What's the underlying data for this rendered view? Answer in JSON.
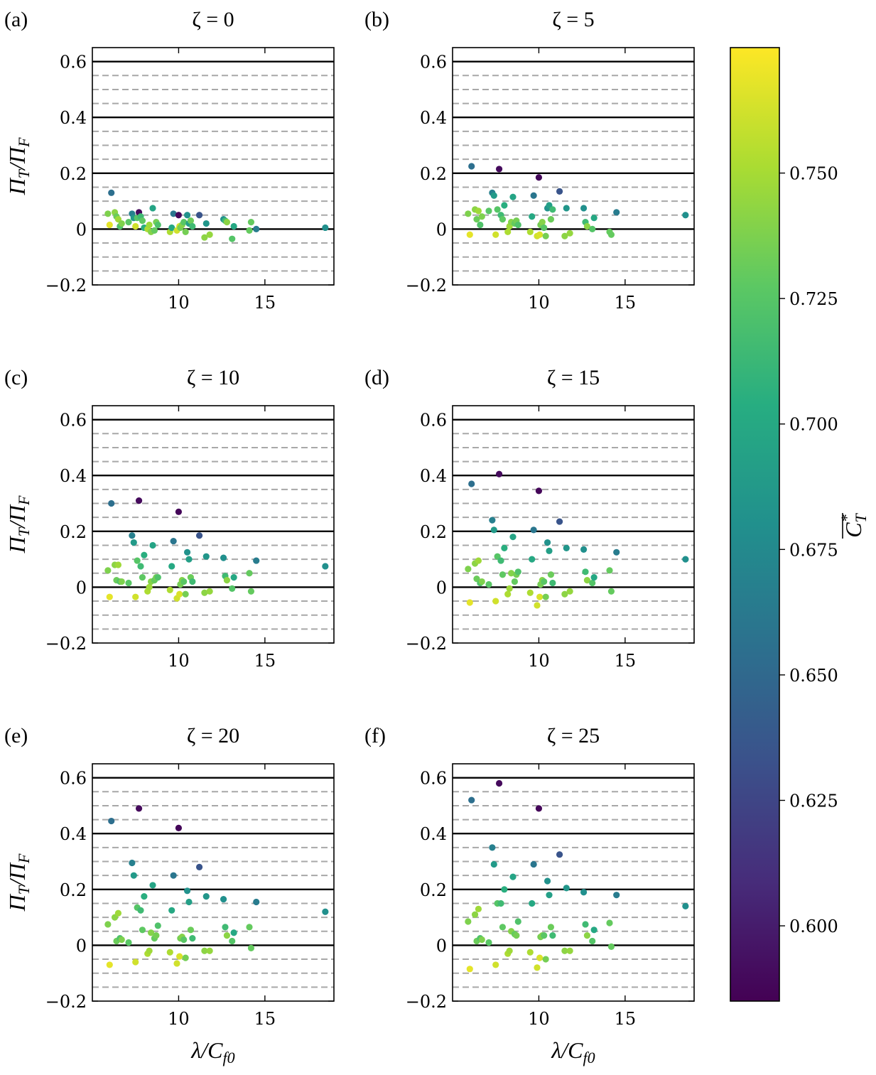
{
  "chart_data": {
    "type": "scatter",
    "layout": "3x2 grid of subplots with shared colorbar",
    "xlabel": "λ/C_f0",
    "ylabel": "Π_T/Π_F",
    "xlim": [
      5,
      19
    ],
    "ylim": [
      -0.2,
      0.65
    ],
    "xticks": [
      10,
      15
    ],
    "yticks": [
      -0.2,
      0,
      0.2,
      0.4,
      0.6
    ],
    "ytick_labels": [
      "−0.2",
      "0",
      "0.2",
      "0.4",
      "0.6"
    ],
    "solid_hlines": [
      0,
      0.2,
      0.4,
      0.6
    ],
    "dashed_hlines": [
      -0.15,
      -0.1,
      -0.05,
      0.05,
      0.1,
      0.15,
      0.25,
      0.3,
      0.35,
      0.45,
      0.5,
      0.55
    ],
    "colorbar": {
      "label": "C_T*",
      "colormap": "viridis",
      "range": [
        0.585,
        0.775
      ],
      "ticks": [
        0.6,
        0.625,
        0.65,
        0.675,
        0.7,
        0.725,
        0.75
      ],
      "tick_labels": [
        "0.600",
        "0.625",
        "0.650",
        "0.675",
        "0.700",
        "0.725",
        "0.750"
      ]
    },
    "points": [
      {
        "x": 5.9,
        "c": 0.738
      },
      {
        "x": 6.0,
        "c": 0.768
      },
      {
        "x": 6.1,
        "c": 0.655
      },
      {
        "x": 6.3,
        "c": 0.742
      },
      {
        "x": 6.4,
        "c": 0.732
      },
      {
        "x": 6.5,
        "c": 0.748
      },
      {
        "x": 6.6,
        "c": 0.722
      },
      {
        "x": 6.7,
        "c": 0.738
      },
      {
        "x": 7.1,
        "c": 0.726
      },
      {
        "x": 7.3,
        "c": 0.668
      },
      {
        "x": 7.4,
        "c": 0.688
      },
      {
        "x": 7.5,
        "c": 0.762
      },
      {
        "x": 7.6,
        "c": 0.725
      },
      {
        "x": 7.7,
        "c": 0.59
      },
      {
        "x": 7.8,
        "c": 0.715
      },
      {
        "x": 7.9,
        "c": 0.728
      },
      {
        "x": 8.0,
        "c": 0.705
      },
      {
        "x": 8.2,
        "c": 0.752
      },
      {
        "x": 8.3,
        "c": 0.748
      },
      {
        "x": 8.4,
        "c": 0.74
      },
      {
        "x": 8.5,
        "c": 0.696
      },
      {
        "x": 8.6,
        "c": 0.73
      },
      {
        "x": 8.7,
        "c": 0.735
      },
      {
        "x": 8.8,
        "c": 0.722
      },
      {
        "x": 9.5,
        "c": 0.752
      },
      {
        "x": 9.6,
        "c": 0.7
      },
      {
        "x": 9.7,
        "c": 0.66
      },
      {
        "x": 9.9,
        "c": 0.762
      },
      {
        "x": 10.0,
        "c": 0.588
      },
      {
        "x": 10.05,
        "c": 0.765
      },
      {
        "x": 10.1,
        "c": 0.735
      },
      {
        "x": 10.2,
        "c": 0.74
      },
      {
        "x": 10.3,
        "c": 0.726
      },
      {
        "x": 10.4,
        "c": 0.735
      },
      {
        "x": 10.5,
        "c": 0.682
      },
      {
        "x": 10.6,
        "c": 0.692
      },
      {
        "x": 10.7,
        "c": 0.732
      },
      {
        "x": 10.8,
        "c": 0.715
      },
      {
        "x": 11.2,
        "c": 0.635
      },
      {
        "x": 11.5,
        "c": 0.742
      },
      {
        "x": 11.6,
        "c": 0.685
      },
      {
        "x": 11.8,
        "c": 0.745
      },
      {
        "x": 12.6,
        "c": 0.68
      },
      {
        "x": 12.7,
        "c": 0.715
      },
      {
        "x": 12.8,
        "c": 0.742
      },
      {
        "x": 13.1,
        "c": 0.724
      },
      {
        "x": 13.2,
        "c": 0.7
      },
      {
        "x": 14.1,
        "c": 0.73
      },
      {
        "x": 14.2,
        "c": 0.73
      },
      {
        "x": 14.5,
        "c": 0.665
      },
      {
        "x": 18.5,
        "c": 0.68
      }
    ],
    "panels": [
      {
        "letter": "(a)",
        "title": "ζ = 0",
        "y": [
          0.055,
          0.015,
          0.13,
          0.06,
          0.045,
          0.035,
          0.01,
          0.02,
          0.025,
          0.055,
          0.04,
          0.01,
          0.04,
          0.06,
          0.045,
          0.03,
          0.005,
          0.0,
          0.015,
          -0.01,
          0.075,
          -0.005,
          0.025,
          0.015,
          -0.01,
          0.005,
          0.055,
          -0.005,
          0.05,
          0.01,
          0.005,
          0.015,
          0.025,
          -0.01,
          0.05,
          0.02,
          0.03,
          0.01,
          0.05,
          -0.03,
          0.02,
          -0.02,
          0.035,
          0.03,
          0.025,
          -0.035,
          0.01,
          -0.005,
          0.025,
          0.0,
          0.005
        ]
      },
      {
        "letter": "(b)",
        "title": "ζ = 5",
        "y": [
          0.055,
          -0.02,
          0.225,
          0.07,
          0.035,
          0.065,
          0.015,
          0.045,
          0.065,
          0.13,
          0.12,
          -0.02,
          0.07,
          0.215,
          0.05,
          0.035,
          0.085,
          -0.01,
          0.01,
          0.025,
          0.115,
          0.02,
          0.03,
          0.015,
          -0.01,
          0.045,
          0.12,
          -0.025,
          0.185,
          -0.02,
          0.015,
          0.025,
          0.005,
          -0.025,
          0.075,
          0.085,
          0.035,
          0.07,
          0.135,
          -0.025,
          0.075,
          -0.015,
          0.075,
          0.025,
          0.01,
          0.0,
          0.04,
          -0.01,
          -0.02,
          0.06,
          0.05
        ]
      },
      {
        "letter": "(c)",
        "title": "ζ = 10",
        "y": [
          0.06,
          -0.035,
          0.3,
          0.08,
          0.025,
          0.08,
          0.02,
          0.02,
          0.015,
          0.185,
          0.16,
          -0.035,
          0.095,
          0.31,
          0.075,
          0.035,
          0.115,
          -0.015,
          0.0,
          0.02,
          0.15,
          0.025,
          0.035,
          0.035,
          -0.01,
          0.075,
          0.165,
          -0.04,
          0.27,
          -0.025,
          0.01,
          0.025,
          0.02,
          -0.025,
          0.125,
          0.1,
          0.035,
          0.02,
          0.185,
          -0.02,
          0.11,
          -0.015,
          0.105,
          0.04,
          0.025,
          -0.005,
          0.035,
          0.05,
          -0.015,
          0.095,
          0.075
        ]
      },
      {
        "letter": "(d)",
        "title": "ζ = 15",
        "y": [
          0.065,
          -0.055,
          0.37,
          0.085,
          0.03,
          0.095,
          0.015,
          0.02,
          0.01,
          0.24,
          0.205,
          -0.05,
          0.11,
          0.405,
          0.095,
          0.045,
          0.14,
          -0.025,
          -0.005,
          0.05,
          0.18,
          0.02,
          0.045,
          0.055,
          -0.02,
          0.1,
          0.205,
          -0.065,
          0.345,
          -0.035,
          0.01,
          0.025,
          0.02,
          -0.035,
          0.16,
          0.13,
          0.045,
          0.015,
          0.235,
          -0.025,
          0.14,
          -0.015,
          0.135,
          0.055,
          0.025,
          0.015,
          0.035,
          0.06,
          -0.015,
          0.125,
          0.1
        ]
      },
      {
        "letter": "(e)",
        "title": "ζ = 20",
        "y": [
          0.075,
          -0.07,
          0.445,
          0.1,
          0.015,
          0.115,
          0.025,
          0.02,
          0.01,
          0.295,
          0.25,
          -0.06,
          0.135,
          0.49,
          0.125,
          0.055,
          0.175,
          -0.03,
          -0.02,
          0.045,
          0.215,
          0.025,
          0.035,
          0.07,
          -0.025,
          0.125,
          0.25,
          -0.065,
          0.42,
          -0.04,
          0.025,
          0.03,
          0.02,
          -0.045,
          0.195,
          0.155,
          0.055,
          0.025,
          0.28,
          -0.02,
          0.175,
          -0.02,
          0.165,
          0.065,
          0.035,
          0.015,
          0.045,
          0.065,
          -0.01,
          0.155,
          0.12
        ]
      },
      {
        "letter": "(f)",
        "title": "ζ = 25",
        "y": [
          0.085,
          -0.085,
          0.52,
          0.11,
          0.015,
          0.13,
          0.025,
          0.02,
          0.01,
          0.35,
          0.29,
          -0.07,
          0.15,
          0.58,
          0.15,
          0.065,
          0.2,
          -0.03,
          -0.02,
          0.05,
          0.245,
          0.04,
          0.035,
          0.085,
          -0.025,
          0.15,
          0.29,
          -0.08,
          0.49,
          -0.045,
          0.03,
          0.035,
          0.035,
          -0.05,
          0.23,
          0.18,
          0.065,
          0.035,
          0.325,
          -0.02,
          0.205,
          -0.02,
          0.19,
          0.075,
          0.035,
          0.015,
          0.055,
          0.08,
          -0.005,
          0.18,
          0.14
        ]
      }
    ]
  }
}
